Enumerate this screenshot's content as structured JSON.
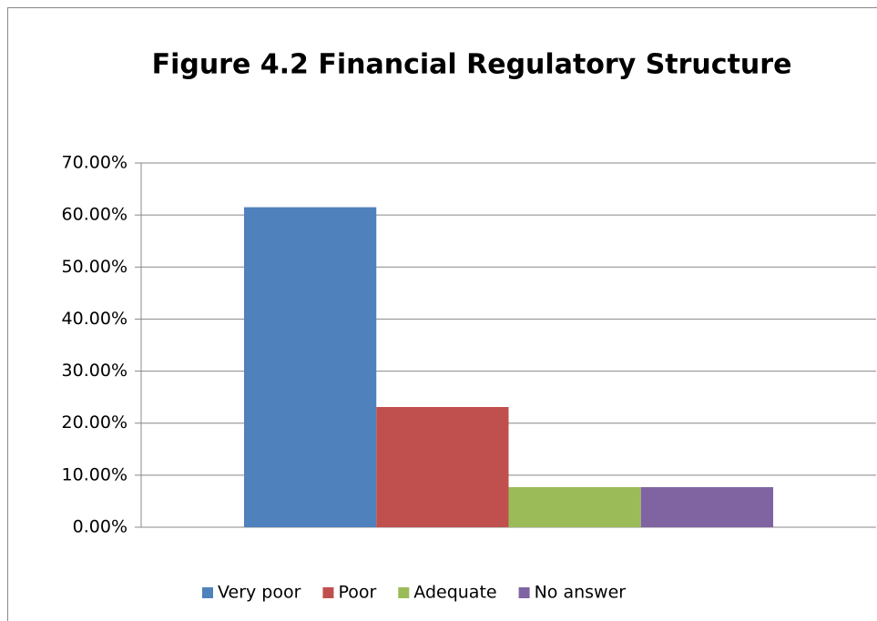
{
  "chart_data": {
    "type": "bar",
    "title": "Figure 4.2 Financial Regulatory Structure",
    "categories": [
      null
    ],
    "series": [
      {
        "name": "Very poor",
        "color": "#4f81bd",
        "values": [
          61.5
        ]
      },
      {
        "name": "Poor",
        "color": "#c0504d",
        "values": [
          23.1
        ]
      },
      {
        "name": "Adequate",
        "color": "#9bbb59",
        "values": [
          7.7
        ]
      },
      {
        "name": "No answer",
        "color": "#8064a2",
        "values": [
          7.7
        ]
      }
    ],
    "ylim": [
      0,
      70
    ],
    "yticks": [
      {
        "value": 0,
        "label": "0.00%"
      },
      {
        "value": 10,
        "label": "10.00%"
      },
      {
        "value": 20,
        "label": "20.00%"
      },
      {
        "value": 30,
        "label": "30.00%"
      },
      {
        "value": 40,
        "label": "40.00%"
      },
      {
        "value": 50,
        "label": "50.00%"
      },
      {
        "value": 60,
        "label": "60.00%"
      },
      {
        "value": 70,
        "label": "70.00%"
      }
    ],
    "grid": true,
    "legend": "bottom"
  }
}
